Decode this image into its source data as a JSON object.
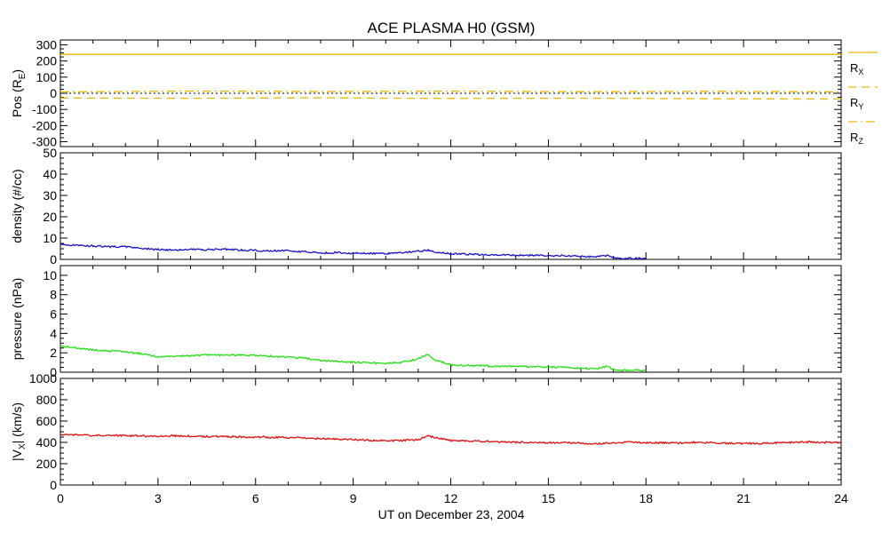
{
  "chart_data": {
    "type": "line",
    "title": "ACE PLASMA H0 (GSM)",
    "xlabel": "UT on December 23, 2004",
    "xlim": [
      0,
      24
    ],
    "xticks": [
      "0",
      "3",
      "6",
      "9",
      "12",
      "15",
      "18",
      "21",
      "24"
    ],
    "panels": [
      {
        "ylabel": "Pos (R",
        "ylabel_sub": "E",
        "ylim": [
          -330,
          330
        ],
        "yticks": [
          -300,
          -200,
          -100,
          0,
          100,
          200,
          300
        ],
        "zero_line": true,
        "legend": [
          "R",
          "R",
          "R"
        ],
        "legend_sub": [
          "X",
          "Y",
          "Z"
        ],
        "series": [
          {
            "name": "R",
            "color": "#e6b800",
            "dash": "",
            "x": [
              0,
              24
            ],
            "values": [
              241,
              241
            ]
          },
          {
            "name": "R",
            "color": "#e6b800",
            "dash": "9,6",
            "x": [
              0,
              4,
              8,
              12,
              16,
              20,
              24
            ],
            "values": [
              -29,
              -31,
              -28,
              -32,
              -30,
              -34,
              -36
            ]
          },
          {
            "name": "R",
            "color": "#e6b800",
            "dash": "10,4,2,4",
            "x": [
              0,
              4,
              8,
              12,
              16,
              20,
              24
            ],
            "values": [
              9,
              14,
              11,
              13,
              10,
              12,
              9
            ]
          }
        ]
      },
      {
        "ylabel": "density (#/cc)",
        "ylim": [
          0,
          50
        ],
        "yticks": [
          0,
          10,
          20,
          30,
          40,
          50
        ],
        "series": [
          {
            "color": "#1a10c8",
            "x": [
              0,
              0.5,
              1,
              1.5,
              2,
              2.5,
              3,
              3.5,
              4,
              4.5,
              5,
              5.5,
              6,
              6.5,
              7,
              7.5,
              8,
              8.5,
              9,
              9.5,
              10,
              10.5,
              11,
              11.3,
              11.5,
              12,
              12.5,
              13,
              13.5,
              14,
              14.5,
              15,
              15.5,
              16,
              16.5,
              16.8,
              17,
              17.3,
              18
            ],
            "values": [
              7.0,
              6.6,
              6.3,
              6.0,
              5.8,
              5.2,
              4.6,
              4.4,
              4.7,
              4.5,
              4.8,
              4.4,
              4.2,
              4.0,
              4.1,
              3.6,
              3.0,
              3.2,
              2.9,
              2.8,
              2.7,
              3.1,
              3.8,
              4.3,
              3.4,
              2.6,
              2.4,
              2.2,
              2.1,
              2.0,
              1.9,
              1.8,
              1.7,
              1.4,
              1.2,
              1.8,
              0.9,
              0.5,
              0.5
            ]
          }
        ]
      },
      {
        "ylabel": "pressure (nPa)",
        "ylim": [
          0,
          11
        ],
        "yticks": [
          0,
          2,
          4,
          6,
          8,
          10
        ],
        "series": [
          {
            "color": "#22e010",
            "x": [
              0,
              0.5,
              1,
              1.5,
              2,
              2.5,
              3,
              3.5,
              4,
              4.5,
              5,
              5.5,
              6,
              6.5,
              7,
              7.5,
              8,
              8.5,
              9,
              9.5,
              10,
              10.5,
              11,
              11.3,
              11.5,
              12,
              12.5,
              13,
              13.5,
              14,
              14.5,
              15,
              15.5,
              16,
              16.5,
              16.8,
              17,
              17.3,
              18
            ],
            "values": [
              2.7,
              2.5,
              2.3,
              2.2,
              2.1,
              1.9,
              1.6,
              1.65,
              1.7,
              1.8,
              1.75,
              1.8,
              1.7,
              1.65,
              1.55,
              1.45,
              1.2,
              1.1,
              1.05,
              0.95,
              0.9,
              1.0,
              1.4,
              1.85,
              1.3,
              0.75,
              0.7,
              0.65,
              0.6,
              0.6,
              0.55,
              0.55,
              0.5,
              0.4,
              0.35,
              0.6,
              0.25,
              0.2,
              0.2
            ]
          }
        ]
      },
      {
        "ylabel": "|V",
        "ylabel_sub": "X",
        "ylabel_tail": "| (km/s)",
        "ylim": [
          0,
          1000
        ],
        "yticks": [
          0,
          200,
          400,
          600,
          800,
          1000
        ],
        "series": [
          {
            "color": "#e01010",
            "x": [
              0,
              0.5,
              1,
              1.5,
              2,
              2.5,
              3,
              3.5,
              4,
              4.5,
              5,
              5.5,
              6,
              6.5,
              7,
              7.5,
              8,
              8.5,
              9,
              9.5,
              10,
              10.5,
              11,
              11.3,
              11.6,
              12,
              12.5,
              13,
              13.5,
              14,
              14.5,
              15,
              15.5,
              16,
              16.5,
              17,
              17.5,
              18,
              18.5,
              19,
              19.5,
              20,
              20.5,
              21,
              21.5,
              22,
              22.5,
              23,
              23.5,
              24
            ],
            "values": [
              468,
              470,
              465,
              467,
              463,
              460,
              455,
              462,
              458,
              455,
              457,
              452,
              450,
              448,
              446,
              440,
              435,
              432,
              428,
              420,
              416,
              418,
              425,
              460,
              440,
              418,
              412,
              410,
              405,
              402,
              398,
              395,
              397,
              393,
              388,
              395,
              402,
              398,
              396,
              394,
              400,
              398,
              392,
              390,
              392,
              396,
              400,
              404,
              400,
              398
            ]
          }
        ]
      }
    ]
  }
}
